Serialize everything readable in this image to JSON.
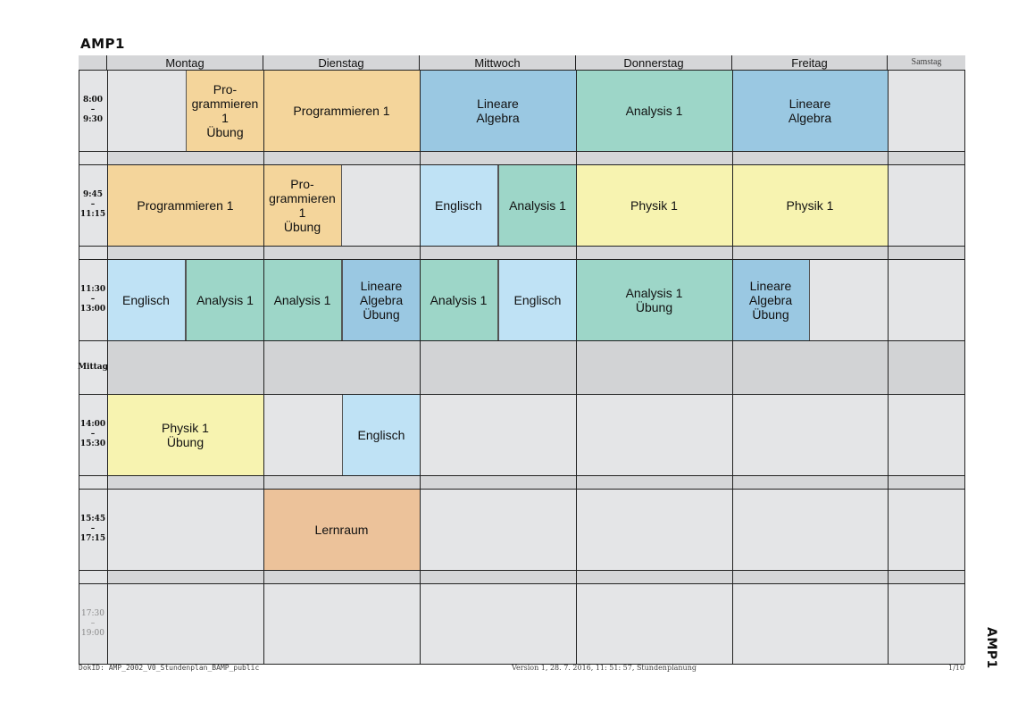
{
  "document": {
    "title": "AMP1",
    "side_label": "AMP1"
  },
  "days": [
    {
      "key": "montag",
      "label": "Montag"
    },
    {
      "key": "dienstag",
      "label": "Dienstag"
    },
    {
      "key": "mittwoch",
      "label": "Mittwoch"
    },
    {
      "key": "donnerstag",
      "label": "Donnerstag"
    },
    {
      "key": "freitag",
      "label": "Freitag"
    },
    {
      "key": "samstag",
      "label": "Samstag"
    }
  ],
  "time_slots": [
    {
      "start": "8:00",
      "sep": "–",
      "end": "9:30"
    },
    {
      "start": "9:45",
      "sep": "–",
      "end": "11:15"
    },
    {
      "start": "11:30",
      "sep": "–",
      "end": "13:00"
    },
    {
      "label": "Mittag"
    },
    {
      "start": "14:00",
      "sep": "–",
      "end": "15:30"
    },
    {
      "start": "15:45",
      "sep": "–",
      "end": "17:15"
    },
    {
      "start": "17:30",
      "sep": "–",
      "end": "19:00"
    }
  ],
  "colors": {
    "programmieren": "#f4d59b",
    "analysis": "#9dd6c8",
    "lineare_algebra": "#9ac8e2",
    "englisch": "#bfe2f5",
    "physik": "#f7f3b0",
    "lernraum": "#ecc29a",
    "empty_slot": "#e4e5e7",
    "gap": "#d5d6d8"
  },
  "courses": [
    {
      "day": 0,
      "half": 2,
      "slot": 0,
      "label": "Pro-\ngrammieren 1\nÜbung",
      "color": "programmieren"
    },
    {
      "day": 1,
      "half": 0,
      "slot": 0,
      "label": "Programmieren 1",
      "color": "programmieren"
    },
    {
      "day": 2,
      "half": 0,
      "slot": 0,
      "label": "Lineare\nAlgebra",
      "color": "lineare_algebra"
    },
    {
      "day": 3,
      "half": 0,
      "slot": 0,
      "label": "Analysis 1",
      "color": "analysis"
    },
    {
      "day": 4,
      "half": 0,
      "slot": 0,
      "label": "Lineare\nAlgebra",
      "color": "lineare_algebra"
    },
    {
      "day": 0,
      "half": 0,
      "slot": 1,
      "label": "Programmieren 1",
      "color": "programmieren"
    },
    {
      "day": 1,
      "half": 1,
      "slot": 1,
      "label": "Pro-\ngrammieren 1\nÜbung",
      "color": "programmieren"
    },
    {
      "day": 2,
      "half": 1,
      "slot": 1,
      "label": "Englisch",
      "color": "englisch"
    },
    {
      "day": 2,
      "half": 2,
      "slot": 1,
      "label": "Analysis 1",
      "color": "analysis"
    },
    {
      "day": 3,
      "half": 0,
      "slot": 1,
      "label": "Physik 1",
      "color": "physik"
    },
    {
      "day": 4,
      "half": 0,
      "slot": 1,
      "label": "Physik 1",
      "color": "physik"
    },
    {
      "day": 0,
      "half": 1,
      "slot": 2,
      "label": "Englisch",
      "color": "englisch"
    },
    {
      "day": 0,
      "half": 2,
      "slot": 2,
      "label": "Analysis 1",
      "color": "analysis"
    },
    {
      "day": 1,
      "half": 1,
      "slot": 2,
      "label": "Analysis 1",
      "color": "analysis"
    },
    {
      "day": 1,
      "half": 2,
      "slot": 2,
      "label": "Lineare\nAlgebra\nÜbung",
      "color": "lineare_algebra"
    },
    {
      "day": 2,
      "half": 1,
      "slot": 2,
      "label": "Analysis 1",
      "color": "analysis"
    },
    {
      "day": 2,
      "half": 2,
      "slot": 2,
      "label": "Englisch",
      "color": "englisch"
    },
    {
      "day": 3,
      "half": 0,
      "slot": 2,
      "label": "Analysis 1\nÜbung",
      "color": "analysis"
    },
    {
      "day": 4,
      "half": 1,
      "slot": 2,
      "label": "Lineare\nAlgebra\nÜbung",
      "color": "lineare_algebra"
    },
    {
      "day": 0,
      "half": 0,
      "slot": 4,
      "label": "Physik 1\nÜbung",
      "color": "physik"
    },
    {
      "day": 1,
      "half": 2,
      "slot": 4,
      "label": "Englisch",
      "color": "englisch"
    },
    {
      "day": 1,
      "half": 0,
      "slot": 5,
      "label": "Lernraum",
      "color": "lernraum"
    }
  ],
  "footer": {
    "doc_id": "DokID: AMP_2002_V0_Stundenplan_BAMP_public",
    "version": "Version 1, 28. 7. 2016, 11: 51: 57, Stundenplanung",
    "page": "1/10"
  }
}
